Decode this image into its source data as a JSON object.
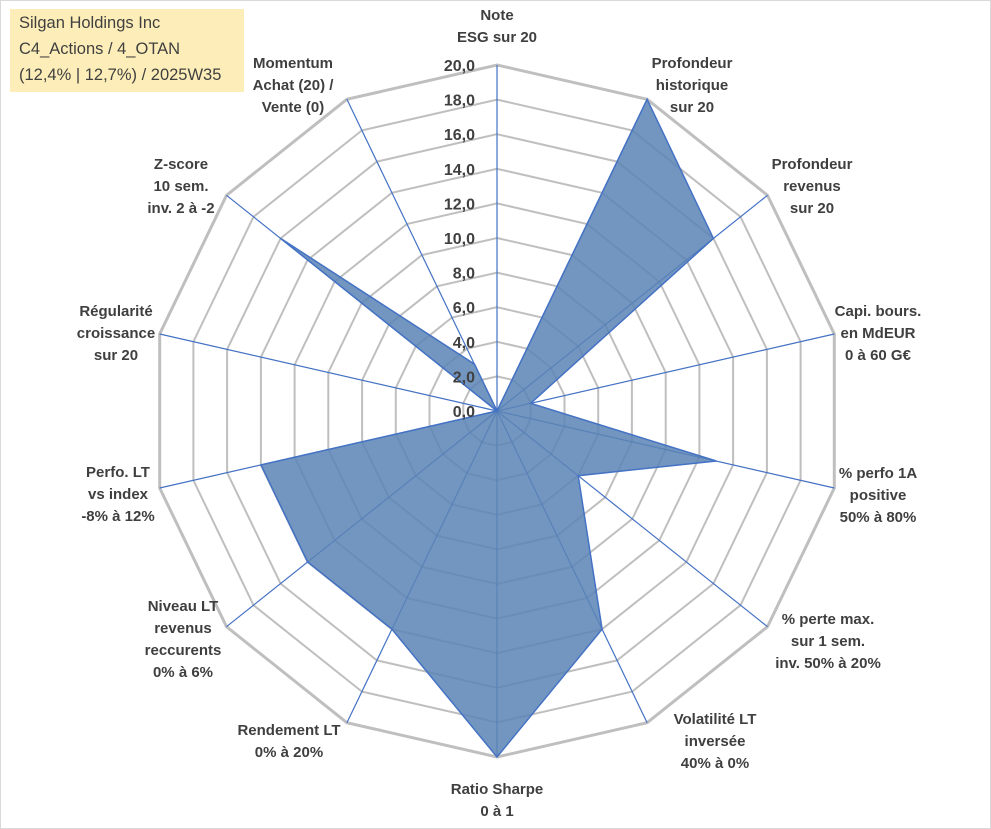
{
  "title_box": {
    "lines": [
      "Silgan Holdings Inc",
      "C4_Actions / 4_OTAN",
      "(12,4% | 12,7%) / 2025W35"
    ]
  },
  "colors": {
    "grid": "#bfbfbf",
    "spoke": "#4472c4",
    "fill": "#5b84b5",
    "title_bg": "#fdeeb9"
  },
  "chart_data": {
    "type": "radar",
    "title": "",
    "rmin": 0,
    "rmax": 20,
    "tick_step": 2,
    "ticks": [
      "0,0",
      "2,0",
      "4,0",
      "6,0",
      "8,0",
      "10,0",
      "12,0",
      "14,0",
      "16,0",
      "18,0",
      "20,0"
    ],
    "grid": true,
    "legend": "none",
    "axes": [
      {
        "label": [
          "Note",
          "ESG sur 20"
        ],
        "value": 0
      },
      {
        "label": [
          "Profondeur",
          "historique",
          "sur 20"
        ],
        "value": 20
      },
      {
        "label": [
          "Profondeur",
          "revenus",
          "sur 20"
        ],
        "value": 16
      },
      {
        "label": [
          "Capi. bours.",
          "en MdEUR",
          "0 à 60 G€"
        ],
        "value": 2
      },
      {
        "label": [
          "% perfo 1A",
          "positive",
          "50% à 80%"
        ],
        "value": 13
      },
      {
        "label": [
          "% perte max.",
          "sur 1 sem.",
          "inv. 50% à 20%"
        ],
        "value": 6
      },
      {
        "label": [
          "Volatilité LT",
          "inversée",
          "40% à 0%"
        ],
        "value": 14
      },
      {
        "label": [
          "Ratio Sharpe",
          "0 à 1"
        ],
        "value": 20
      },
      {
        "label": [
          "Rendement LT",
          "0% à 20%"
        ],
        "value": 14
      },
      {
        "label": [
          "Niveau LT",
          "revenus",
          "reccurents",
          "0% à 6%"
        ],
        "value": 14
      },
      {
        "label": [
          "Perfo. LT",
          "vs index",
          "-8% à 12%"
        ],
        "value": 14
      },
      {
        "label": [
          "Régularité",
          "croissance",
          "sur 20"
        ],
        "value": 0
      },
      {
        "label": [
          "Z-score",
          "10 sem.",
          "inv. 2 à -2"
        ],
        "value": 16
      },
      {
        "label": [
          "Momentum",
          "Achat (20) /",
          "Vente (0)"
        ],
        "value": 3
      }
    ]
  }
}
